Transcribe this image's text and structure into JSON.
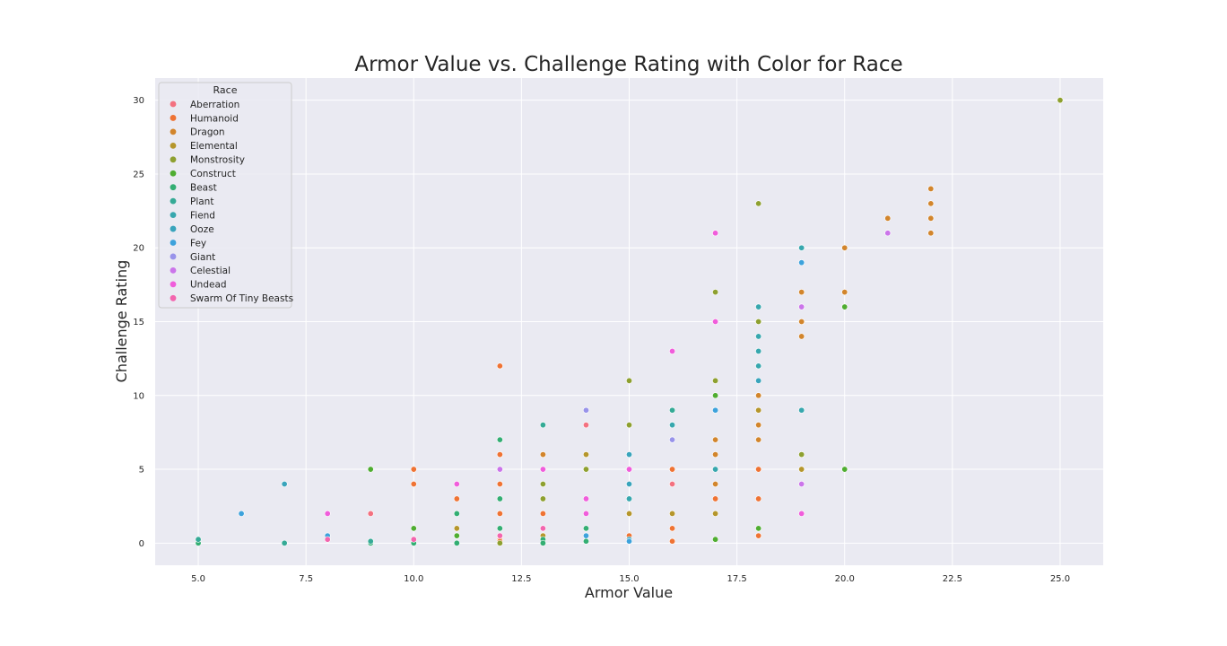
{
  "chart_data": {
    "type": "scatter",
    "title": "Armor Value vs. Challenge Rating with Color for Race",
    "xlabel": "Armor Value",
    "ylabel": "Challenge Rating",
    "xlim": [
      4.0,
      26.0
    ],
    "ylim": [
      -1.5,
      31.5
    ],
    "x_ticks": [
      5.0,
      7.5,
      10.0,
      12.5,
      15.0,
      17.5,
      20.0,
      22.5,
      25.0
    ],
    "x_tick_labels": [
      "5.0",
      "7.5",
      "10.0",
      "12.5",
      "15.0",
      "17.5",
      "20.0",
      "22.5",
      "25.0"
    ],
    "y_ticks": [
      0,
      5,
      10,
      15,
      20,
      25,
      30
    ],
    "y_tick_labels": [
      "0",
      "5",
      "10",
      "15",
      "20",
      "25",
      "30"
    ],
    "grid": true,
    "background": "#eaeaf2",
    "legend": {
      "title": "Race",
      "position": "top-left"
    },
    "series": [
      {
        "name": "Aberration",
        "color": "#f37180",
        "points": [
          [
            9,
            2
          ],
          [
            14,
            8
          ],
          [
            16,
            4
          ]
        ]
      },
      {
        "name": "Humanoid",
        "color": "#ef7334",
        "points": [
          [
            10,
            5
          ],
          [
            10,
            4
          ],
          [
            11,
            3
          ],
          [
            12,
            12
          ],
          [
            12,
            6
          ],
          [
            12,
            4
          ],
          [
            12,
            2
          ],
          [
            12,
            0.25
          ],
          [
            12,
            0.125
          ],
          [
            13,
            2
          ],
          [
            15,
            0.5
          ],
          [
            16,
            5
          ],
          [
            16,
            1
          ],
          [
            16,
            0.125
          ],
          [
            17,
            3
          ],
          [
            18,
            5
          ],
          [
            18,
            3
          ],
          [
            18,
            0.5
          ]
        ]
      },
      {
        "name": "Dragon",
        "color": "#d2852c",
        "points": [
          [
            13,
            6
          ],
          [
            17,
            7
          ],
          [
            17,
            6
          ],
          [
            17,
            4
          ],
          [
            18,
            10
          ],
          [
            18,
            8
          ],
          [
            18,
            7
          ],
          [
            19,
            17
          ],
          [
            19,
            15
          ],
          [
            19,
            14
          ],
          [
            20,
            20
          ],
          [
            20,
            17
          ],
          [
            21,
            22
          ],
          [
            22,
            24
          ],
          [
            22,
            23
          ],
          [
            22,
            22
          ],
          [
            22,
            21
          ]
        ]
      },
      {
        "name": "Elemental",
        "color": "#b5962c",
        "points": [
          [
            11,
            1
          ],
          [
            13,
            0.5
          ],
          [
            14,
            6
          ],
          [
            14,
            5
          ],
          [
            15,
            2
          ],
          [
            16,
            2
          ],
          [
            17,
            5
          ],
          [
            17,
            2
          ],
          [
            18,
            9
          ],
          [
            19,
            5
          ]
        ]
      },
      {
        "name": "Monstrosity",
        "color": "#8ea030",
        "points": [
          [
            11,
            0.5
          ],
          [
            12,
            0
          ],
          [
            13,
            4
          ],
          [
            13,
            3
          ],
          [
            14,
            5
          ],
          [
            15,
            11
          ],
          [
            15,
            8
          ],
          [
            17,
            17
          ],
          [
            17,
            11
          ],
          [
            18,
            23
          ],
          [
            18,
            15
          ],
          [
            19,
            6
          ],
          [
            25,
            30
          ]
        ]
      },
      {
        "name": "Construct",
        "color": "#4fad31",
        "points": [
          [
            9,
            5
          ],
          [
            10,
            1
          ],
          [
            11,
            0.5
          ],
          [
            17,
            10
          ],
          [
            17,
            0.25
          ],
          [
            18,
            1
          ],
          [
            20,
            16
          ],
          [
            20,
            5
          ]
        ]
      },
      {
        "name": "Beast",
        "color": "#33ae73",
        "points": [
          [
            5,
            0
          ],
          [
            9,
            0
          ],
          [
            10,
            0
          ],
          [
            11,
            2
          ],
          [
            11,
            0
          ],
          [
            12,
            7
          ],
          [
            12,
            3
          ],
          [
            12,
            1
          ],
          [
            13,
            0.25
          ],
          [
            13,
            0
          ],
          [
            14,
            1
          ],
          [
            14,
            0.125
          ]
        ]
      },
      {
        "name": "Plant",
        "color": "#35aa96",
        "points": [
          [
            5,
            0.25
          ],
          [
            7,
            0
          ],
          [
            9,
            0.125
          ],
          [
            13,
            8
          ],
          [
            16,
            9
          ]
        ]
      },
      {
        "name": "Fiend",
        "color": "#37a7ae",
        "points": [
          [
            15,
            3
          ],
          [
            16,
            8
          ],
          [
            17,
            5
          ],
          [
            18,
            16
          ],
          [
            18,
            14
          ],
          [
            18,
            13
          ],
          [
            18,
            12
          ],
          [
            19,
            20
          ],
          [
            19,
            9
          ]
        ]
      },
      {
        "name": "Ooze",
        "color": "#39a4bc",
        "points": [
          [
            7,
            4
          ],
          [
            15,
            6
          ],
          [
            15,
            4
          ],
          [
            15,
            0.25
          ],
          [
            18,
            11
          ]
        ]
      },
      {
        "name": "Fey",
        "color": "#3da2dc",
        "points": [
          [
            6,
            2
          ],
          [
            8,
            0.5
          ],
          [
            14,
            0.5
          ],
          [
            15,
            0.125
          ],
          [
            17,
            9
          ],
          [
            19,
            19
          ]
        ]
      },
      {
        "name": "Giant",
        "color": "#9893ea",
        "points": [
          [
            14,
            9
          ],
          [
            16,
            7
          ]
        ]
      },
      {
        "name": "Celestial",
        "color": "#cb75ea",
        "points": [
          [
            12,
            5
          ],
          [
            19,
            16
          ],
          [
            19,
            4
          ],
          [
            21,
            21
          ]
        ]
      },
      {
        "name": "Undead",
        "color": "#f05ddb",
        "points": [
          [
            8,
            2
          ],
          [
            11,
            4
          ],
          [
            13,
            5
          ],
          [
            14,
            3
          ],
          [
            14,
            2
          ],
          [
            15,
            5
          ],
          [
            16,
            13
          ],
          [
            17,
            21
          ],
          [
            17,
            15
          ],
          [
            19,
            2
          ]
        ]
      },
      {
        "name": "Swarm Of Tiny Beasts",
        "color": "#f365ae",
        "points": [
          [
            8,
            0.25
          ],
          [
            10,
            0.25
          ],
          [
            12,
            0.5
          ],
          [
            13,
            1
          ]
        ]
      }
    ]
  }
}
